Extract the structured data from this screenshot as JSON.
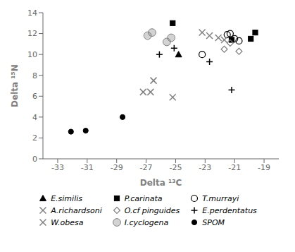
{
  "chart_data": {
    "type": "scatter",
    "x_label": "Delta ¹³C",
    "y_label": "Delta ¹⁵N",
    "xlim": [
      -34,
      -18
    ],
    "ylim": [
      0,
      14
    ],
    "xticks": [
      -33,
      -31,
      -29,
      -27,
      -25,
      -23,
      -21,
      -19
    ],
    "yticks": [
      0,
      2,
      4,
      6,
      8,
      10,
      12,
      14
    ],
    "grid": false,
    "series": [
      {
        "name": "E.similis",
        "color": "black",
        "marker": "triangle",
        "x": [
          -24.8
        ],
        "values": [
          10.0
        ]
      },
      {
        "name": "P.carinata",
        "color": "black",
        "marker": "square",
        "x": [
          -25.2,
          -19.6,
          -19.9,
          -21.2
        ],
        "values": [
          13.0,
          12.1,
          11.5,
          11.4
        ]
      },
      {
        "name": "T.murrayi",
        "color": "black",
        "marker": "circle-open",
        "x": [
          -23.2,
          -21.3,
          -21.5,
          -21.0,
          -20.7
        ],
        "values": [
          10.0,
          12.0,
          11.9,
          11.5,
          11.3
        ]
      },
      {
        "name": "A.richardsoni",
        "color": "gray",
        "marker": "x",
        "x": [
          -27.2,
          -26.7,
          -26.5,
          -25.2
        ],
        "values": [
          6.4,
          6.4,
          7.5,
          5.9
        ]
      },
      {
        "name": "O.cf pinguides",
        "color": "gray",
        "marker": "diamond-open",
        "x": [
          -21.7,
          -21.3,
          -20.7
        ],
        "values": [
          10.5,
          11.1,
          10.3
        ]
      },
      {
        "name": "E.perdentatus",
        "color": "black",
        "marker": "plus",
        "x": [
          -26.1,
          -25.1,
          -22.7,
          -21.2
        ],
        "values": [
          10.0,
          10.6,
          9.3,
          6.6
        ]
      },
      {
        "name": "W.obesa",
        "color": "gray",
        "marker": "x",
        "x": [
          -23.2,
          -22.7,
          -22.1,
          -21.7
        ],
        "values": [
          12.1,
          11.8,
          11.6,
          11.4
        ]
      },
      {
        "name": "I.cyclogena",
        "color": "gray",
        "marker": "circle-shaded",
        "x": [
          -26.9,
          -26.6,
          -25.6,
          -25.3
        ],
        "values": [
          11.8,
          12.1,
          11.2,
          11.6
        ]
      },
      {
        "name": "SPOM",
        "color": "black",
        "marker": "circle",
        "x": [
          -32.1,
          -31.1,
          -28.6
        ],
        "values": [
          2.6,
          2.7,
          4.0
        ]
      }
    ]
  }
}
